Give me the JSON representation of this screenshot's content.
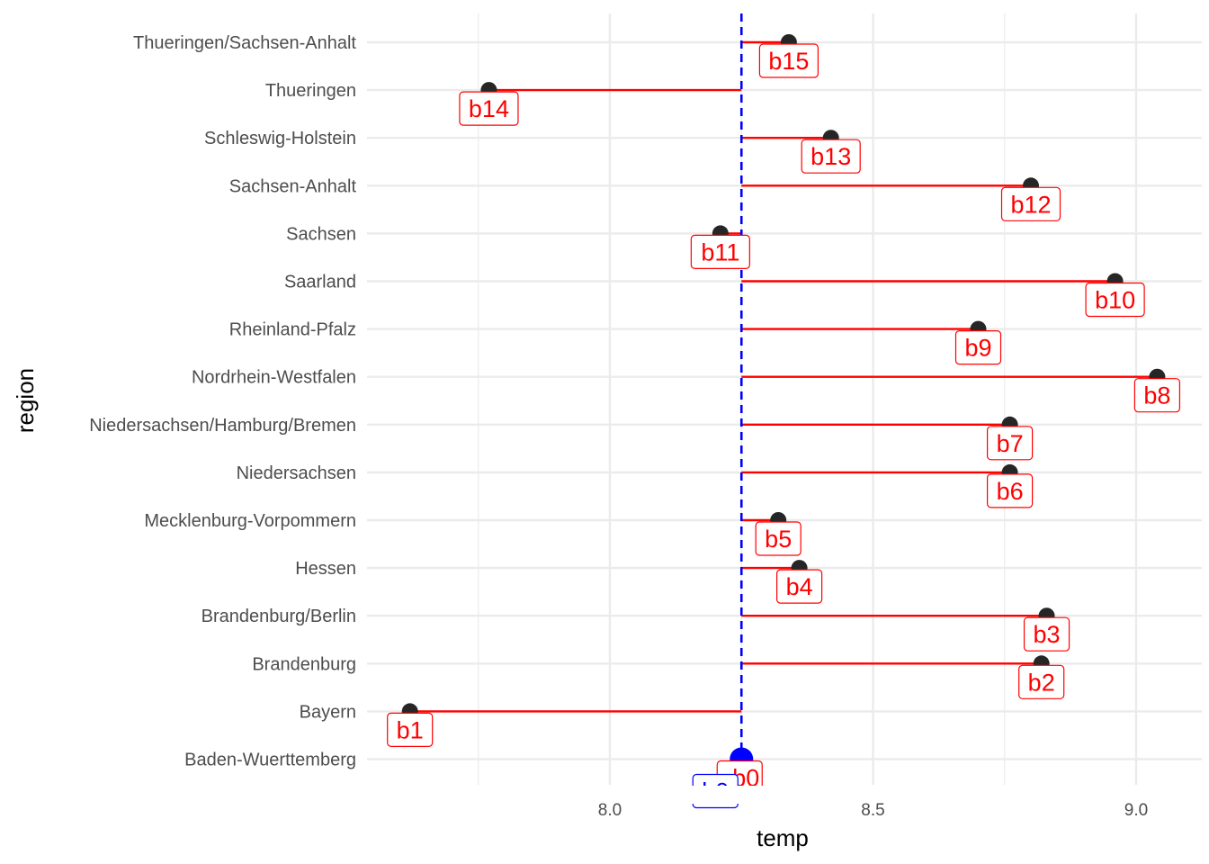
{
  "chart_data": {
    "type": "lollipop",
    "xlabel": "temp",
    "ylabel": "region",
    "xlim": [
      7.55,
      9.1
    ],
    "x_ticks": [
      8.0,
      8.5,
      9.0
    ],
    "x_tick_labels": [
      "8.0",
      "8.5",
      "9.0"
    ],
    "grid": true,
    "baseline": {
      "x": 8.25,
      "style": "dashed",
      "color": "#0000ff"
    },
    "categories": [
      "Baden-Wuerttemberg",
      "Bayern",
      "Brandenburg",
      "Brandenburg/Berlin",
      "Hessen",
      "Mecklenburg-Vorpommern",
      "Niedersachsen",
      "Niedersachsen/Hamburg/Bremen",
      "Nordrhein-Westfalen",
      "Rheinland-Pfalz",
      "Saarland",
      "Sachsen",
      "Sachsen-Anhalt",
      "Schleswig-Holstein",
      "Thueringen",
      "Thueringen/Sachsen-Anhalt"
    ],
    "values": [
      8.25,
      7.62,
      8.82,
      8.83,
      8.36,
      8.32,
      8.76,
      8.76,
      9.04,
      8.7,
      8.96,
      8.21,
      8.8,
      8.42,
      7.77,
      8.34
    ],
    "labels": [
      "b0",
      "b1",
      "b2",
      "b3",
      "b4",
      "b5",
      "b6",
      "b7",
      "b8",
      "b9",
      "b10",
      "b11",
      "b12",
      "b13",
      "b14",
      "b15"
    ],
    "colors": {
      "segment": "#ff0000",
      "point": "#262626",
      "baseline_point": "#0000ff",
      "label": "#ff0000",
      "baseline_label": "#0000ff",
      "grid": "#ebebeb"
    }
  }
}
